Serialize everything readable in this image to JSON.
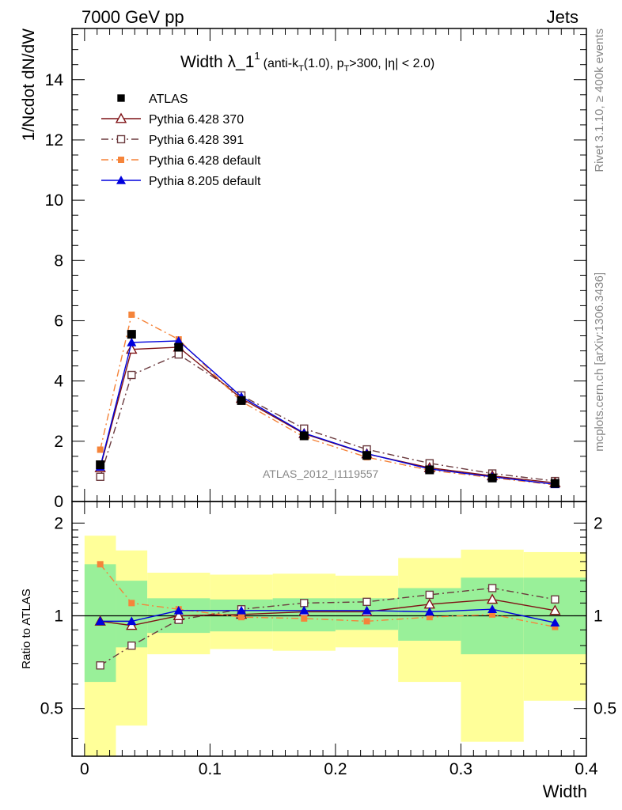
{
  "header": {
    "left": "7000 GeV pp",
    "right": "Jets"
  },
  "side": {
    "rivet": "Rivet 3.1.10, ≥ 400k events",
    "mcplots": "mcplots.cern.ch [arXiv:1306.3436]"
  },
  "chart_data": [
    {
      "type": "line",
      "panel": "main",
      "title": "Width λ_1",
      "title_sup": "1",
      "title_suffix_parts": [
        "(anti-k",
        "T",
        "(1.0), p",
        "T",
        ">300, |η| < 2.0)"
      ],
      "ylabel": "1/Ncdot dN/dW",
      "ylim": [
        0,
        15.7
      ],
      "xlim": [
        -0.01,
        0.4
      ],
      "yticks": [
        0,
        2,
        4,
        6,
        8,
        10,
        12,
        14
      ],
      "ytick_labels": [
        "0",
        "2",
        "4",
        "6",
        "8",
        "10",
        "12",
        "14"
      ],
      "watermark": "ATLAS_2012_I1119557",
      "x": [
        0.0125,
        0.0375,
        0.075,
        0.125,
        0.175,
        0.225,
        0.275,
        0.325,
        0.375
      ],
      "series": [
        {
          "name": "ATLAS",
          "color": "#000000",
          "marker": "square-filled",
          "line": "none",
          "values": [
            1.22,
            5.55,
            5.12,
            3.35,
            2.18,
            1.53,
            1.05,
            0.78,
            0.6
          ]
        },
        {
          "name": "Pythia 6.428 370",
          "color": "#7f1216",
          "marker": "triangle-open",
          "line": "solid",
          "values": [
            1.12,
            5.05,
            5.12,
            3.42,
            2.25,
            1.58,
            1.12,
            0.85,
            0.62
          ]
        },
        {
          "name": "Pythia 6.428 391",
          "color": "#6b3a3e",
          "marker": "square-open",
          "line": "dashdot",
          "values": [
            0.82,
            4.2,
            4.88,
            3.52,
            2.42,
            1.73,
            1.27,
            0.93,
            0.68
          ]
        },
        {
          "name": "Pythia 6.428 default",
          "color": "#f5843a",
          "marker": "square-filled-small",
          "line": "dashdot",
          "values": [
            1.72,
            6.2,
            5.38,
            3.32,
            2.14,
            1.47,
            1.04,
            0.79,
            0.55
          ]
        },
        {
          "name": "Pythia 8.205 default",
          "color": "#0000dd",
          "marker": "triangle-filled",
          "line": "solid",
          "values": [
            1.15,
            5.28,
            5.33,
            3.48,
            2.27,
            1.59,
            1.08,
            0.82,
            0.57
          ]
        }
      ]
    },
    {
      "type": "line",
      "panel": "ratio",
      "ylabel": "Ratio to ATLAS",
      "xlabel": "Width",
      "ylog": true,
      "ylim": [
        0.35,
        2.35
      ],
      "xlim": [
        -0.01,
        0.4
      ],
      "yticks": [
        0.5,
        1,
        2
      ],
      "ytick_labels": [
        "0.5",
        "1",
        "2"
      ],
      "xticks": [
        0,
        0.1,
        0.2,
        0.3,
        0.4
      ],
      "xtick_labels": [
        "0",
        "0.1",
        "0.2",
        "0.3",
        "0.4"
      ],
      "reference_line": 1,
      "bin_edges": [
        0,
        0.025,
        0.05,
        0.1,
        0.15,
        0.2,
        0.25,
        0.3,
        0.35,
        0.4
      ],
      "band_green": {
        "color": "#99f099",
        "low": [
          0.61,
          0.79,
          0.88,
          0.89,
          0.89,
          0.9,
          0.83,
          0.75,
          0.75
        ],
        "high": [
          1.47,
          1.3,
          1.14,
          1.13,
          1.14,
          1.14,
          1.23,
          1.33,
          1.33
        ]
      },
      "band_yellow": {
        "color": "#ffff99",
        "low": [
          0.33,
          0.44,
          0.75,
          0.78,
          0.77,
          0.79,
          0.61,
          0.39,
          0.53
        ],
        "high": [
          1.82,
          1.63,
          1.38,
          1.36,
          1.37,
          1.35,
          1.54,
          1.64,
          1.61
        ]
      },
      "x": [
        0.0125,
        0.0375,
        0.075,
        0.125,
        0.175,
        0.225,
        0.275,
        0.325,
        0.375
      ],
      "series": [
        {
          "name": "Pythia 6.428 370",
          "color": "#7f1216",
          "marker": "triangle-open",
          "line": "solid",
          "values": [
            0.96,
            0.93,
            1.0,
            1.01,
            1.03,
            1.03,
            1.09,
            1.13,
            1.04
          ]
        },
        {
          "name": "Pythia 6.428 391",
          "color": "#6b3a3e",
          "marker": "square-open",
          "line": "dashdot",
          "values": [
            0.69,
            0.8,
            0.97,
            1.05,
            1.1,
            1.11,
            1.17,
            1.23,
            1.13
          ]
        },
        {
          "name": "Pythia 6.428 default",
          "color": "#f5843a",
          "marker": "square-filled-small",
          "line": "dashdot",
          "values": [
            1.47,
            1.1,
            1.05,
            0.99,
            0.98,
            0.96,
            0.99,
            1.01,
            0.92
          ]
        },
        {
          "name": "Pythia 8.205 default",
          "color": "#0000dd",
          "marker": "triangle-filled",
          "line": "solid",
          "values": [
            0.96,
            0.96,
            1.04,
            1.04,
            1.04,
            1.04,
            1.03,
            1.05,
            0.95
          ]
        }
      ]
    }
  ]
}
